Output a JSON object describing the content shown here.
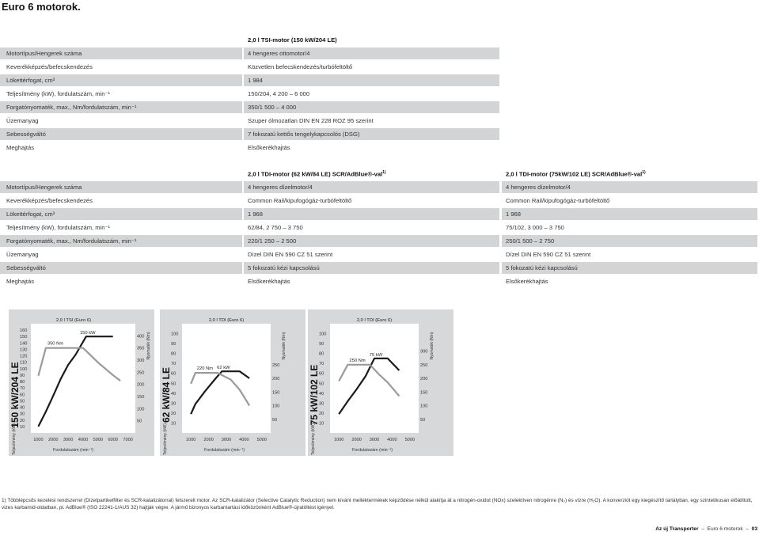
{
  "page_title": "Euro 6 motorok.",
  "table1": {
    "header": "2,0 l TSI-motor (150 kW/204 LE)",
    "rows": [
      {
        "label": "Motortípus/Hengerek száma",
        "value": "4 hengeres ottomotor/4"
      },
      {
        "label": "Keverékképzés/befecskendezés",
        "value": "Közvetlen befecskendezés/turbófeltöltő"
      },
      {
        "label": "Lökettérfogat, cm³",
        "value": "1 984"
      },
      {
        "label": "Teljesítmény (kW), fordulatszám, min⁻¹",
        "value": "150/204, 4 200 – 6 000"
      },
      {
        "label": "Forgatónyomaték, max., Nm/fordulatszám, min⁻¹",
        "value": "350/1 500 – 4 000"
      },
      {
        "label": "Üzemanyag",
        "value": "Szuper ólmozatlan DIN EN 228 ROZ 95 szerint"
      },
      {
        "label": "Sebességváltó",
        "value": "7 fokozatú kettős tengelykapcsolós (DSG)"
      },
      {
        "label": "Meghajtás",
        "value": "Elsőkerékhajtás"
      }
    ]
  },
  "table2": {
    "header_a": "2,0 l TDI-motor (62 kW/84 LE) SCR/AdBlue®-val",
    "header_b": "2,0 l TDI-motor (75kW/102 LE) SCR/AdBlue®-val",
    "header_sup": "1)",
    "rows": [
      {
        "label": "Motortípus/Hengerek száma",
        "a": "4 hengeres dízelmotor/4",
        "b": "4 hengeres dízelmotor/4"
      },
      {
        "label": "Keverékképzés/befecskendezés",
        "a": "Common Rail/kipufogógáz-turbófeltöltő",
        "b": "Common Rail/kipufogógáz-turbófeltöltő"
      },
      {
        "label": "Lökettérfogat, cm³",
        "a": "1 968",
        "b": "1 968"
      },
      {
        "label": "Teljesítmény (kW), fordulatszám, min⁻¹",
        "a": "62/84, 2 750 – 3 750",
        "b": "75/102, 3 000 – 3 750"
      },
      {
        "label": "Forgatónyomaték, max., Nm/fordulatszám, min⁻¹",
        "a": "220/1 250 – 2 500",
        "b": "250/1 500 – 2 750"
      },
      {
        "label": "Üzemanyag",
        "a": "Dízel DIN EN 590 CZ 51 szerint",
        "b": "Dízel DIN EN 590 CZ 51 szerint"
      },
      {
        "label": "Sebességváltó",
        "a": "5 fokozatú kézi kapcsolású",
        "b": "5 fokozatú kézi kapcsolású"
      },
      {
        "label": "Meghajtás",
        "a": "Elsőkerékhajtás",
        "b": "Elsőkerékhajtás"
      }
    ]
  },
  "chart_data": [
    {
      "type": "line",
      "title": "2,0 l TSI (Euro 6)",
      "side_label": "150 kW/204 LE",
      "ylabel": "Teljesítmény (kW)",
      "y2label": "Nyomaték (Nm)",
      "xlabel": "Fordulatszám (min⁻¹)",
      "xlim": [
        500,
        7500
      ],
      "ylim": [
        0,
        170
      ],
      "y2lim": [
        0,
        450
      ],
      "x_ticks": [
        "1000",
        "2000",
        "3000",
        "4000",
        "5000",
        "6000",
        "7000"
      ],
      "y_ticks": [
        "10",
        "20",
        "30",
        "40",
        "50",
        "60",
        "70",
        "80",
        "90",
        "100",
        "110",
        "120",
        "130",
        "140",
        "150",
        "160"
      ],
      "y2_ticks": [
        "50",
        "100",
        "150",
        "200",
        "250",
        "300",
        "350",
        "400"
      ],
      "power_label": "150 kW",
      "torque_label": "350 Nm",
      "series": [
        {
          "axis": "left",
          "color": "#1a1a1a",
          "x": [
            1000,
            1500,
            2000,
            2500,
            3000,
            3500,
            4200,
            5000,
            6000
          ],
          "y": [
            10,
            33,
            58,
            84,
            106,
            122,
            150,
            150,
            150
          ]
        },
        {
          "axis": "right",
          "color": "#9a9a9a",
          "x": [
            1000,
            1500,
            4000,
            5000,
            6000,
            6500
          ],
          "y": [
            235,
            350,
            350,
            290,
            238,
            215
          ]
        }
      ]
    },
    {
      "type": "line",
      "title": "2,0 l TDI (Euro 6)",
      "side_label": "62 kW/84 LE",
      "ylabel": "Teljesítmény (kW)",
      "y2label": "Nyomaték (Nm)",
      "xlabel": "Fordulatszám (min⁻¹)",
      "xlim": [
        500,
        5500
      ],
      "ylim": [
        0,
        110
      ],
      "y2lim": [
        0,
        400
      ],
      "x_ticks": [
        "1000",
        "2000",
        "3000",
        "4000",
        "5000"
      ],
      "y_ticks": [
        "10",
        "20",
        "30",
        "40",
        "50",
        "60",
        "70",
        "80",
        "90",
        "100"
      ],
      "y2_ticks": [
        "50",
        "100",
        "150",
        "200",
        "250"
      ],
      "power_label": "62 kW",
      "torque_label": "220 Nm",
      "series": [
        {
          "axis": "left",
          "color": "#1a1a1a",
          "x": [
            1000,
            1250,
            1800,
            2400,
            2750,
            3750,
            4300
          ],
          "y": [
            19,
            29,
            42,
            55,
            62,
            62,
            55
          ]
        },
        {
          "axis": "right",
          "color": "#9a9a9a",
          "x": [
            1000,
            1250,
            2500,
            3250,
            3750,
            4300
          ],
          "y": [
            180,
            220,
            220,
            195,
            158,
            100
          ]
        }
      ]
    },
    {
      "type": "line",
      "title": "2,0 l TDI (Euro 6)",
      "side_label": "75 kW/102 LE",
      "ylabel": "Teljesítmény (kW)",
      "y2label": "Nyomaték (Nm)",
      "xlabel": "Fordulatszám (min⁻¹)",
      "xlim": [
        500,
        5500
      ],
      "ylim": [
        0,
        110
      ],
      "y2lim": [
        0,
        400
      ],
      "x_ticks": [
        "1000",
        "2000",
        "3000",
        "4000",
        "5000"
      ],
      "y_ticks": [
        "10",
        "20",
        "30",
        "40",
        "50",
        "60",
        "70",
        "80",
        "90",
        "100"
      ],
      "y2_ticks": [
        "50",
        "100",
        "150",
        "200",
        "250",
        "300"
      ],
      "power_label": "75 kW",
      "torque_label": "250 Nm",
      "series": [
        {
          "axis": "left",
          "color": "#1a1a1a",
          "x": [
            1000,
            1500,
            2000,
            2500,
            3000,
            3750,
            4400
          ],
          "y": [
            19,
            32,
            44,
            57,
            75,
            75,
            63
          ]
        },
        {
          "axis": "right",
          "color": "#9a9a9a",
          "x": [
            1000,
            1500,
            2750,
            3250,
            3750,
            4400
          ],
          "y": [
            190,
            250,
            250,
            215,
            185,
            135
          ]
        }
      ]
    }
  ],
  "footnote": "1) Többlépcsős kezelési rendszerrel (Dízelpartikelfilter és SCR-katalizátorral) felszerelt motor. Az SCR-katalizátor (Selective Catalytic Reduction) nem kívánt melléktermékek képződése nélkül alakítja át a nitrogén-oxidot (NOx) szelektíven nitrogénre (N₂) és vízre (H₂O). A konverziót egy kiegészítő tartályban, egy szintetikusan előállított, vizes karbamid-oldatban, pl. AdBlue® (ISO 22241-1/AUS 32) hajtják végre. A jármű bizonyos karbantartási időközönként AdBlue®-újratöltést igényel.",
  "footer": {
    "brand": "Az új Transporter",
    "section": "Euro 6 motorok",
    "page": "03"
  }
}
